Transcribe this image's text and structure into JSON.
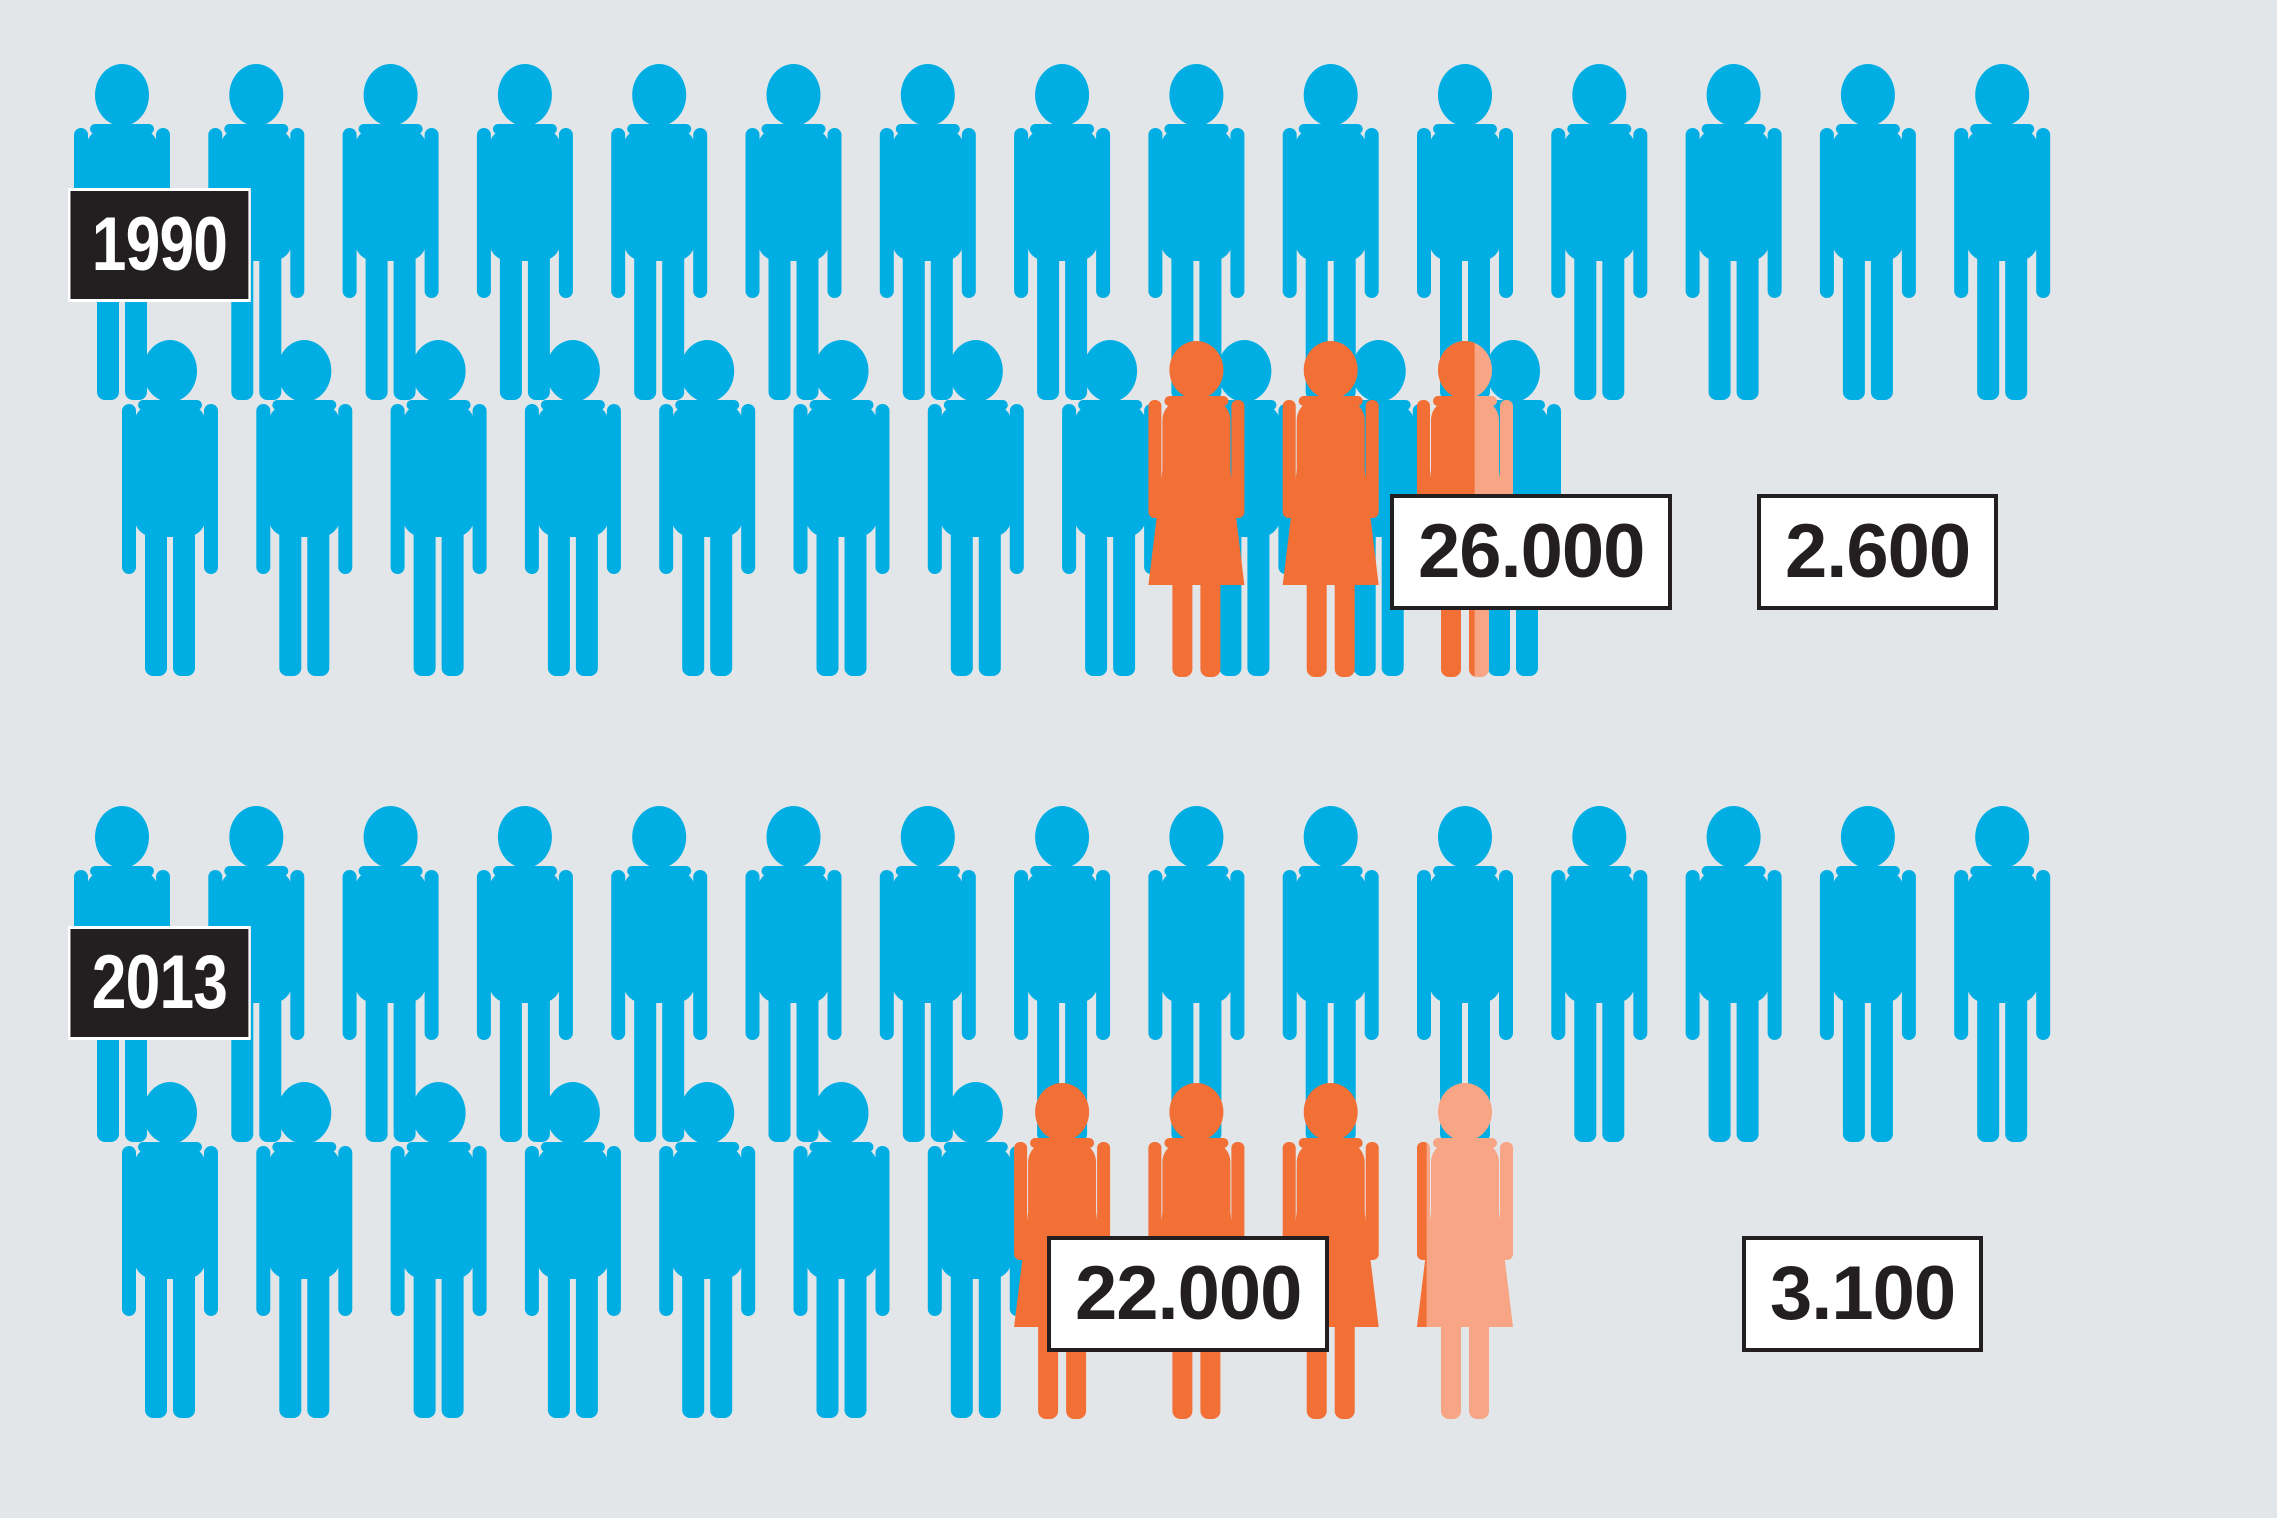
{
  "colors": {
    "background": "#e3e6e8",
    "men": "#00aee3",
    "women": "#f26f36",
    "women_faded": "#f7a585"
  },
  "icons": {
    "men": "man-figure-icon",
    "women": "woman-figure-icon"
  },
  "chart_data": {
    "type": "pictogram",
    "title": "",
    "categories": [
      "1990",
      "2013"
    ],
    "series": [
      {
        "values": [
          26000,
          22000
        ]
      },
      {
        "values": [
          2600,
          3100
        ]
      }
    ],
    "icon_counts": {
      "1990": {
        "men": 26,
        "women": 2.6
      },
      "2013": {
        "men": 22,
        "women": 3.1
      }
    }
  },
  "panels": [
    {
      "year": "1990",
      "men_label": "26.000",
      "women_label": "2.600"
    },
    {
      "year": "2013",
      "men_label": "22.000",
      "women_label": "3.100"
    }
  ]
}
